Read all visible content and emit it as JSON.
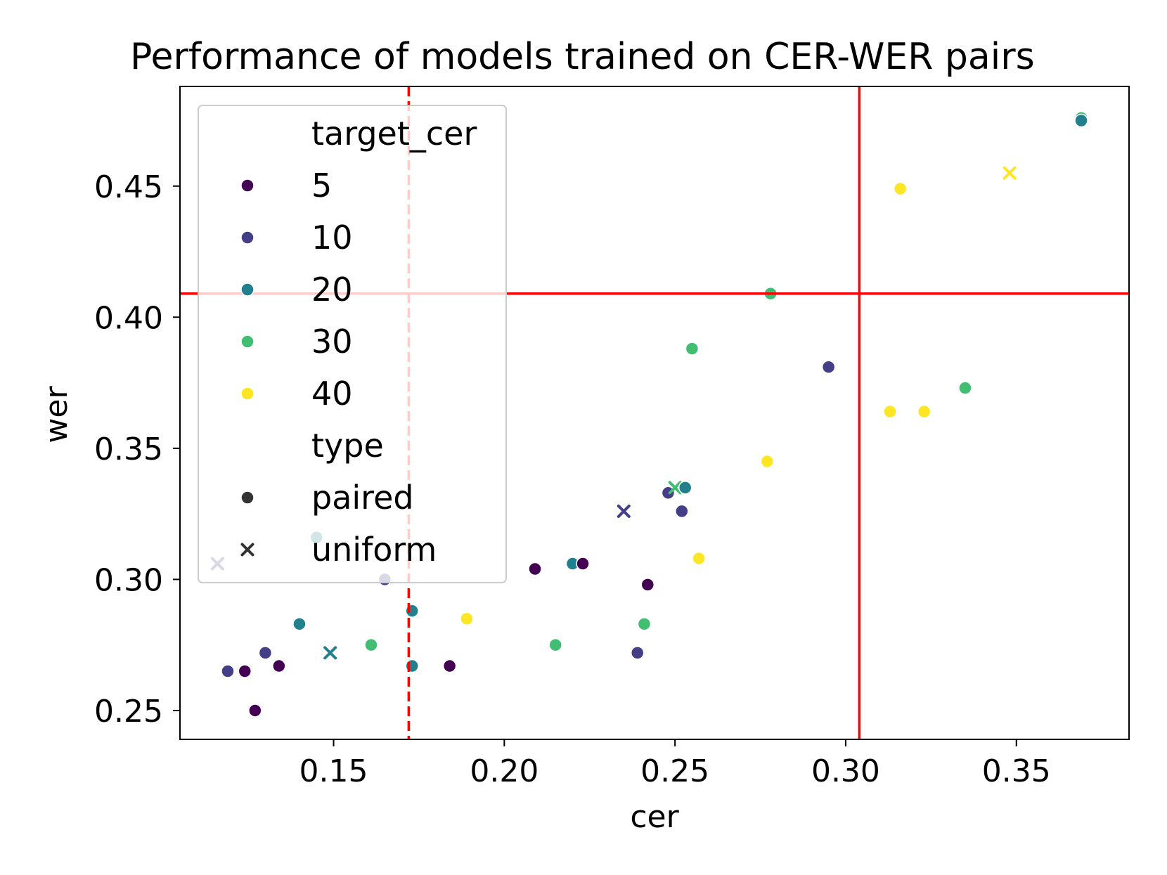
{
  "chart_data": {
    "type": "scatter",
    "title": "Performance of models trained on CER-WER pairs",
    "xlabel": "cer",
    "ylabel": "wer",
    "xlim": [
      0.105,
      0.383
    ],
    "ylim": [
      0.239,
      0.488
    ],
    "xticks": [
      0.15,
      0.2,
      0.25,
      0.3,
      0.35
    ],
    "xtick_labels": [
      "0.15",
      "0.20",
      "0.25",
      "0.30",
      "0.35"
    ],
    "yticks": [
      0.25,
      0.3,
      0.35,
      0.4,
      0.45
    ],
    "ytick_labels": [
      "0.25",
      "0.30",
      "0.35",
      "0.40",
      "0.45"
    ],
    "colors": {
      "5": "#440154",
      "10": "#433e85",
      "20": "#22808e",
      "30": "#41be71",
      "40": "#fde725"
    },
    "reference_lines": [
      {
        "name": "vertical-red-line",
        "orientation": "vertical",
        "value": 0.304,
        "style": "solid",
        "color": "#ff0000"
      },
      {
        "name": "horizontal-red-line",
        "orientation": "horizontal",
        "value": 0.409,
        "style": "solid",
        "color": "#ff0000"
      },
      {
        "name": "vertical-red-dashed-line",
        "orientation": "vertical",
        "value": 0.172,
        "style": "dashed",
        "color": "#ff0000"
      }
    ],
    "points": [
      {
        "cer": 0.119,
        "wer": 0.265,
        "target_cer": "10",
        "type": "paired"
      },
      {
        "cer": 0.124,
        "wer": 0.265,
        "target_cer": "5",
        "type": "paired"
      },
      {
        "cer": 0.127,
        "wer": 0.25,
        "target_cer": "5",
        "type": "paired"
      },
      {
        "cer": 0.13,
        "wer": 0.272,
        "target_cer": "10",
        "type": "paired"
      },
      {
        "cer": 0.134,
        "wer": 0.267,
        "target_cer": "5",
        "type": "paired"
      },
      {
        "cer": 0.14,
        "wer": 0.283,
        "target_cer": "20",
        "type": "paired"
      },
      {
        "cer": 0.145,
        "wer": 0.316,
        "target_cer": "20",
        "type": "paired"
      },
      {
        "cer": 0.149,
        "wer": 0.272,
        "target_cer": "20",
        "type": "uniform"
      },
      {
        "cer": 0.116,
        "wer": 0.306,
        "target_cer": "10",
        "type": "uniform"
      },
      {
        "cer": 0.161,
        "wer": 0.275,
        "target_cer": "30",
        "type": "paired"
      },
      {
        "cer": 0.165,
        "wer": 0.3,
        "target_cer": "10",
        "type": "paired"
      },
      {
        "cer": 0.173,
        "wer": 0.288,
        "target_cer": "20",
        "type": "paired"
      },
      {
        "cer": 0.173,
        "wer": 0.267,
        "target_cer": "20",
        "type": "paired"
      },
      {
        "cer": 0.184,
        "wer": 0.267,
        "target_cer": "5",
        "type": "paired"
      },
      {
        "cer": 0.189,
        "wer": 0.285,
        "target_cer": "40",
        "type": "paired"
      },
      {
        "cer": 0.209,
        "wer": 0.304,
        "target_cer": "5",
        "type": "paired"
      },
      {
        "cer": 0.215,
        "wer": 0.275,
        "target_cer": "30",
        "type": "paired"
      },
      {
        "cer": 0.22,
        "wer": 0.306,
        "target_cer": "20",
        "type": "paired"
      },
      {
        "cer": 0.223,
        "wer": 0.306,
        "target_cer": "5",
        "type": "paired"
      },
      {
        "cer": 0.235,
        "wer": 0.326,
        "target_cer": "10",
        "type": "uniform"
      },
      {
        "cer": 0.239,
        "wer": 0.272,
        "target_cer": "10",
        "type": "paired"
      },
      {
        "cer": 0.241,
        "wer": 0.283,
        "target_cer": "30",
        "type": "paired"
      },
      {
        "cer": 0.242,
        "wer": 0.298,
        "target_cer": "5",
        "type": "paired"
      },
      {
        "cer": 0.248,
        "wer": 0.333,
        "target_cer": "10",
        "type": "paired"
      },
      {
        "cer": 0.25,
        "wer": 0.335,
        "target_cer": "30",
        "type": "uniform"
      },
      {
        "cer": 0.252,
        "wer": 0.326,
        "target_cer": "10",
        "type": "paired"
      },
      {
        "cer": 0.253,
        "wer": 0.335,
        "target_cer": "20",
        "type": "paired"
      },
      {
        "cer": 0.255,
        "wer": 0.388,
        "target_cer": "30",
        "type": "paired"
      },
      {
        "cer": 0.257,
        "wer": 0.308,
        "target_cer": "40",
        "type": "paired"
      },
      {
        "cer": 0.277,
        "wer": 0.345,
        "target_cer": "40",
        "type": "paired"
      },
      {
        "cer": 0.278,
        "wer": 0.409,
        "target_cer": "30",
        "type": "paired"
      },
      {
        "cer": 0.295,
        "wer": 0.381,
        "target_cer": "10",
        "type": "paired"
      },
      {
        "cer": 0.313,
        "wer": 0.364,
        "target_cer": "40",
        "type": "paired"
      },
      {
        "cer": 0.316,
        "wer": 0.449,
        "target_cer": "40",
        "type": "paired"
      },
      {
        "cer": 0.323,
        "wer": 0.364,
        "target_cer": "40",
        "type": "paired"
      },
      {
        "cer": 0.335,
        "wer": 0.373,
        "target_cer": "30",
        "type": "paired"
      },
      {
        "cer": 0.348,
        "wer": 0.455,
        "target_cer": "40",
        "type": "uniform"
      },
      {
        "cer": 0.369,
        "wer": 0.476,
        "target_cer": "30",
        "type": "paired"
      },
      {
        "cer": 0.369,
        "wer": 0.475,
        "target_cer": "20",
        "type": "paired"
      }
    ],
    "legend": {
      "position": "upper-left",
      "hue_title": "target_cer",
      "hue_entries": [
        "5",
        "10",
        "20",
        "30",
        "40"
      ],
      "style_title": "type",
      "style_entries": [
        {
          "label": "paired",
          "marker": "circle"
        },
        {
          "label": "uniform",
          "marker": "x"
        }
      ]
    }
  }
}
